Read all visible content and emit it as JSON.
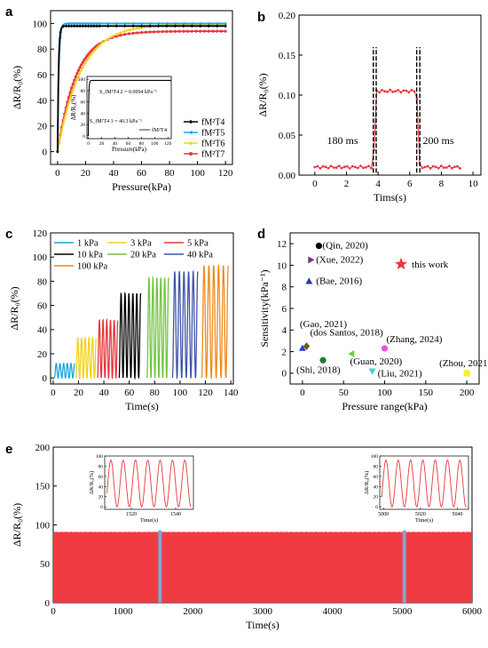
{
  "chart_data": [
    {
      "id": "a",
      "panel_label": "a",
      "type": "line",
      "xlabel": "Pressure(kPa)",
      "ylabel": "ΔR/R₀(%)",
      "xlim": [
        -5,
        125
      ],
      "ylim": [
        -10,
        110
      ],
      "xticks": [
        0,
        20,
        40,
        60,
        80,
        100,
        120
      ],
      "yticks": [
        0,
        20,
        40,
        60,
        80,
        100
      ],
      "legend_position": "bottom-right",
      "series": [
        {
          "name": "fM²T4",
          "color": "#000000",
          "marker": "diamond",
          "plateau": 98,
          "k": 1.5
        },
        {
          "name": "fM²T5",
          "color": "#1aa7e0",
          "marker": "triangle-left",
          "plateau": 100,
          "k": 1.1
        },
        {
          "name": "fM²T6",
          "color": "#f2d21c",
          "marker": "triangle-up",
          "plateau": 99.5,
          "k": 0.06
        },
        {
          "name": "fM²T7",
          "color": "#e8383d",
          "marker": "circle",
          "plateau": 94,
          "k": 0.075
        }
      ],
      "inset": {
        "xlabel": "Pressure(kPa)",
        "ylabel": "ΔR/R₀(%)",
        "xticks": [
          0,
          20,
          40,
          60,
          80,
          100,
          120
        ],
        "yticks": [
          0,
          20,
          40,
          60,
          80,
          100
        ],
        "xlim": [
          -2,
          125
        ],
        "ylim": [
          -5,
          105
        ],
        "legend": "fM²T4",
        "annotations": [
          "S_fM²T4 2 = 0.0094 kPa⁻¹",
          "S_fM²T4 1 = 40.3 kPa⁻¹"
        ]
      }
    },
    {
      "id": "b",
      "panel_label": "b",
      "type": "line",
      "xlabel": "Tims(s)",
      "ylabel": "ΔR/R₀(%)",
      "xlim": [
        -1,
        10.5
      ],
      "ylim": [
        0,
        0.2
      ],
      "xticks": [
        0,
        2,
        4,
        6,
        8,
        10
      ],
      "yticks": [
        0.0,
        0.05,
        0.1,
        0.15,
        0.2
      ],
      "color": "#e8383d",
      "baseline": 0.01,
      "high": 0.105,
      "rise_time": [
        3.7,
        3.88
      ],
      "fall_time": [
        6.44,
        6.64
      ],
      "x_range": [
        0,
        9.3
      ],
      "annotations": [
        "180 ms",
        "200 ms"
      ]
    },
    {
      "id": "c",
      "panel_label": "c",
      "type": "line",
      "xlabel": "Time(s)",
      "ylabel": "ΔR/R₀(%)",
      "xlim": [
        -2,
        142
      ],
      "ylim": [
        -5,
        120
      ],
      "xticks": [
        0,
        20,
        40,
        60,
        80,
        100,
        120,
        140
      ],
      "yticks": [
        0,
        20,
        40,
        60,
        80,
        100,
        120
      ],
      "legend_position": "top-left",
      "series": [
        {
          "name": "1 kPa",
          "color": "#1aa7e0",
          "amp": 12,
          "start": 1,
          "end": 17
        },
        {
          "name": "3 kPa",
          "color": "#f2d21c",
          "amp": 33,
          "start": 18,
          "end": 34
        },
        {
          "name": "5 kPa",
          "color": "#e8383d",
          "amp": 48,
          "start": 35,
          "end": 51
        },
        {
          "name": "10 kPa",
          "color": "#000000",
          "amp": 70,
          "start": 52,
          "end": 69
        },
        {
          "name": "20 kPa",
          "color": "#72c541",
          "amp": 83,
          "start": 74,
          "end": 91
        },
        {
          "name": "40 kPa",
          "color": "#4055a8",
          "amp": 88,
          "start": 94,
          "end": 114
        },
        {
          "name": "100 kPa",
          "color": "#f08a1c",
          "amp": 93,
          "start": 117,
          "end": 138
        }
      ]
    },
    {
      "id": "d",
      "panel_label": "d",
      "type": "scatter",
      "xlabel": "Pressure range(kPa)",
      "ylabel": "Sensitivity(kPa⁻¹)",
      "xlim": [
        -15,
        215
      ],
      "ylim": [
        -1,
        13
      ],
      "xticks": [
        0,
        50,
        100,
        150,
        200
      ],
      "yticks": [
        0,
        2,
        4,
        6,
        8,
        10,
        12
      ],
      "points": [
        {
          "label": "(Qin, 2020)",
          "x": 20,
          "y": 11.8,
          "color": "#000000",
          "marker": "circle"
        },
        {
          "label": "(Xue, 2022)",
          "x": 10,
          "y": 10.5,
          "color": "#7b2d8e",
          "marker": "triangle-right"
        },
        {
          "label": "this work",
          "x": 120,
          "y": 10.1,
          "color": "#e8383d",
          "marker": "star"
        },
        {
          "label": "(Bae, 2016)",
          "x": 8,
          "y": 8.5,
          "color": "#1f3a9e",
          "marker": "triangle-up"
        },
        {
          "label": "(Gao, 2021)",
          "x": 0,
          "y": 2.3,
          "color": "#2c3dd6",
          "marker": "triangle-up"
        },
        {
          "label": "(dos Santos, 2018)",
          "x": 5,
          "y": 2.5,
          "color": "#6b5a1e",
          "marker": "diamond"
        },
        {
          "label": "(Zhang, 2024)",
          "x": 100,
          "y": 2.3,
          "color": "#ee4fd6",
          "marker": "circle"
        },
        {
          "label": "(Guan, 2020)",
          "x": 60,
          "y": 1.8,
          "color": "#6bd13a",
          "marker": "triangle-left"
        },
        {
          "label": "(Shi, 2018)",
          "x": 25,
          "y": 1.2,
          "color": "#1e7d2e",
          "marker": "circle"
        },
        {
          "label": "(Liu, 2021)",
          "x": 85,
          "y": 0.2,
          "color": "#3fd3c8",
          "marker": "triangle-down"
        },
        {
          "label": "(Zhou, 2021)",
          "x": 200,
          "y": 0,
          "color": "#f6ee2a",
          "marker": "square"
        }
      ]
    },
    {
      "id": "e",
      "panel_label": "e",
      "type": "area",
      "xlabel": "Time(s)",
      "ylabel": "ΔR/R₀(%)",
      "xlim": [
        0,
        6000
      ],
      "ylim": [
        0,
        200
      ],
      "xticks": [
        0,
        1000,
        2000,
        3000,
        4000,
        5000,
        6000
      ],
      "yticks": [
        0,
        50,
        100,
        150,
        200
      ],
      "color": "#ef3b41",
      "fill_top": 90,
      "markers_at": [
        1530,
        5030
      ],
      "insets": [
        {
          "xticks": [
            1520,
            1540
          ],
          "xlim": [
            1508,
            1548
          ],
          "yticks": [
            0,
            20,
            40,
            60,
            80,
            100
          ],
          "ylim": [
            -5,
            100
          ],
          "xlabel": "Time(s)",
          "ylabel": "ΔR/R₀(%)",
          "peaks": 7
        },
        {
          "xticks": [
            5000,
            5020,
            5040
          ],
          "xlim": [
            4998,
            5046
          ],
          "yticks": [
            0,
            20,
            40,
            60,
            80,
            100
          ],
          "ylim": [
            -5,
            100
          ],
          "xlabel": "Time(s)",
          "ylabel": "ΔR/R₀(%)",
          "peaks": 7
        }
      ]
    }
  ]
}
